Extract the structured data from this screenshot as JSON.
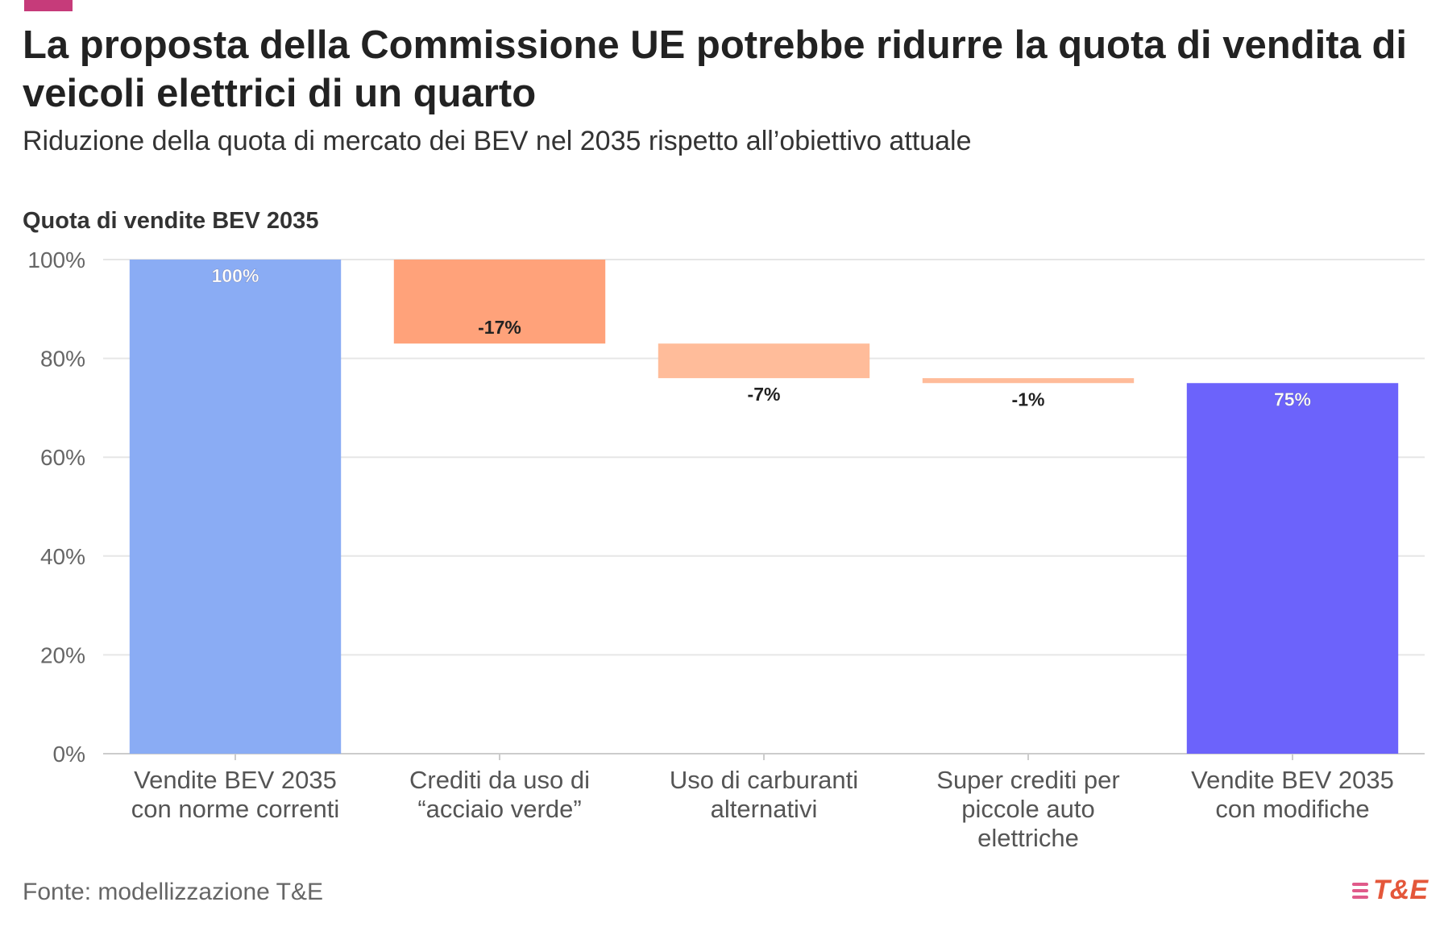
{
  "header": {
    "title": "La proposta della Commissione UE potrebbe ridurre la quota di vendita di veicoli elettrici di un quarto",
    "subtitle": "Riduzione della quota di mercato dei BEV nel 2035 rispetto all’obiettivo attuale",
    "axis_title": "Quota di vendite BEV 2035"
  },
  "footer": {
    "source": "Fonte: modellizzazione T&E",
    "logo": "T&E"
  },
  "colors": {
    "accent": "#c63b7a",
    "total_start": "#8aacf4",
    "total_end": "#6c63fb",
    "decrease_large": "#ffa27a",
    "decrease_small": "#ffbc9a",
    "grid": "#e6e6e6"
  },
  "chart_data": {
    "type": "bar",
    "subtype": "waterfall",
    "title": "La proposta della Commissione UE potrebbe ridurre la quota di vendita di veicoli elettrici di un quarto",
    "ylabel": "Quota di vendite BEV 2035",
    "ylim": [
      0,
      100
    ],
    "yticks": [
      0,
      20,
      40,
      60,
      80,
      100
    ],
    "ytick_labels": [
      "0%",
      "20%",
      "40%",
      "60%",
      "80%",
      "100%"
    ],
    "grid": true,
    "categories": [
      [
        "Vendite BEV 2035",
        "con norme correnti"
      ],
      [
        "Crediti da uso di",
        "“acciaio verde”"
      ],
      [
        "Uso di carburanti",
        "alternativi"
      ],
      [
        "Super crediti per",
        "piccole auto",
        "elettriche"
      ],
      [
        "Vendite BEV 2035",
        "con modifiche"
      ]
    ],
    "bars": [
      {
        "kind": "total",
        "start": 0,
        "end": 100,
        "label": "100%",
        "color": "#8aacf4",
        "label_color": "#ffffff"
      },
      {
        "kind": "delta",
        "start": 100,
        "end": 83,
        "label": "-17%",
        "color": "#ffa27a",
        "label_color": "#222222"
      },
      {
        "kind": "delta",
        "start": 83,
        "end": 76,
        "label": "-7%",
        "color": "#ffbc9a",
        "label_color": "#222222"
      },
      {
        "kind": "delta",
        "start": 76,
        "end": 75,
        "label": "-1%",
        "color": "#ffbc9a",
        "label_color": "#222222"
      },
      {
        "kind": "total",
        "start": 0,
        "end": 75,
        "label": "75%",
        "color": "#6c63fb",
        "label_color": "#ffffff"
      }
    ]
  }
}
